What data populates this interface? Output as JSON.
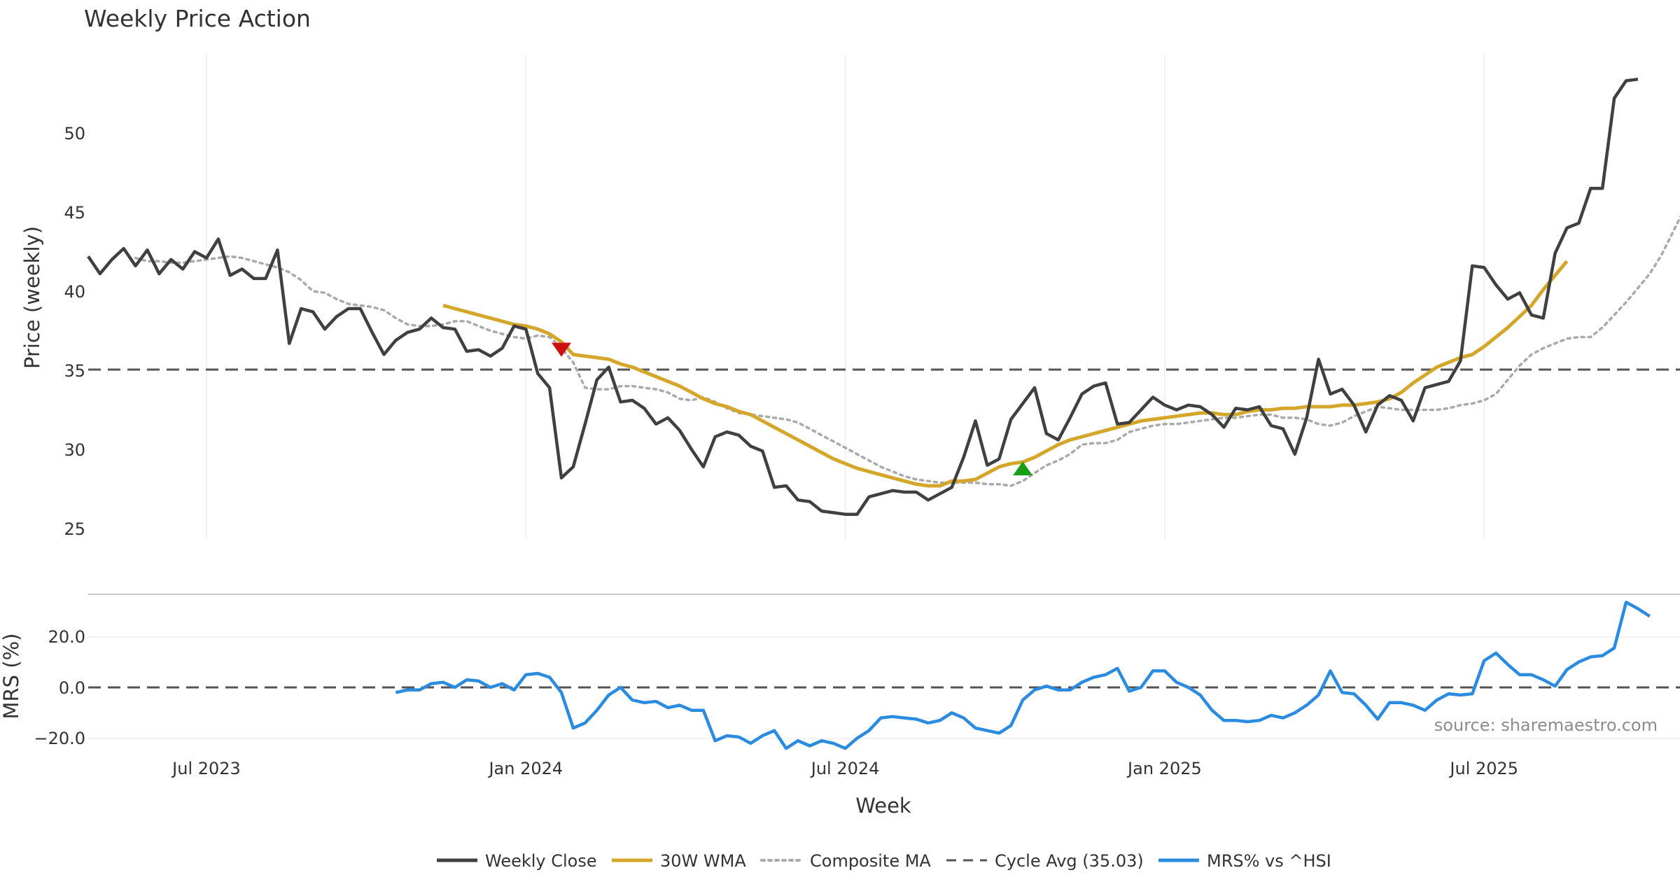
{
  "chart_data": [
    {
      "type": "line",
      "title": "Weekly Price Action",
      "ylabel": "Price (weekly)",
      "ylim": [
        23.8,
        55.5
      ],
      "yticks": [
        "25",
        "30",
        "35",
        "40",
        "45",
        "50"
      ],
      "x_start_week": 0,
      "x_end_week": 142,
      "series": [
        {
          "name": "Weekly Close",
          "color": "#404040",
          "start_week": 0,
          "values": [
            42.2,
            41.1,
            42.0,
            42.7,
            41.6,
            42.6,
            41.1,
            42.0,
            41.4,
            42.5,
            42.1,
            43.3,
            41.0,
            41.4,
            40.8,
            40.8,
            42.6,
            36.7,
            38.9,
            38.7,
            37.6,
            38.4,
            38.9,
            38.9,
            37.4,
            36.0,
            36.9,
            37.4,
            37.6,
            38.3,
            37.7,
            37.6,
            36.2,
            36.3,
            35.9,
            36.4,
            37.8,
            37.6,
            34.8,
            33.9,
            28.2,
            28.9,
            31.6,
            34.4,
            35.2,
            33.0,
            33.1,
            32.6,
            31.6,
            32.0,
            31.2,
            30.0,
            28.9,
            30.8,
            31.1,
            30.9,
            30.2,
            29.9,
            27.6,
            27.7,
            26.8,
            26.7,
            26.1,
            26.0,
            25.9,
            25.9,
            27.0,
            27.2,
            27.4,
            27.3,
            27.3,
            26.8,
            27.2,
            27.6,
            29.5,
            31.8,
            29.0,
            29.4,
            31.9,
            32.9,
            33.9,
            31.0,
            30.6,
            32.0,
            33.5,
            34.0,
            34.2,
            31.6,
            31.7,
            32.5,
            33.3,
            32.8,
            32.5,
            32.8,
            32.7,
            32.2,
            31.4,
            32.6,
            32.5,
            32.7,
            31.5,
            31.3,
            29.7,
            32.0,
            35.7,
            33.5,
            33.8,
            32.8,
            31.1,
            32.8,
            33.4,
            33.1,
            31.8,
            33.9,
            34.1,
            34.3,
            35.6,
            41.6,
            41.5,
            40.4,
            39.5,
            39.9,
            38.5,
            38.3,
            42.4,
            44.0,
            44.3,
            46.5,
            46.5,
            52.2,
            53.3,
            53.4
          ]
        },
        {
          "name": "30W WMA",
          "color": "#d4a62a",
          "start_week": 30,
          "values": [
            39.1,
            38.9,
            38.7,
            38.5,
            38.3,
            38.1,
            37.9,
            37.8,
            37.6,
            37.3,
            36.8,
            36.0,
            35.9,
            35.8,
            35.7,
            35.4,
            35.2,
            34.9,
            34.6,
            34.3,
            34.0,
            33.6,
            33.2,
            32.9,
            32.7,
            32.4,
            32.2,
            31.8,
            31.4,
            31.0,
            30.6,
            30.2,
            29.8,
            29.4,
            29.1,
            28.8,
            28.6,
            28.4,
            28.2,
            28.0,
            27.8,
            27.7,
            27.7,
            28.0,
            28.0,
            28.1,
            28.5,
            28.9,
            29.1,
            29.2,
            29.5,
            29.9,
            30.3,
            30.6,
            30.8,
            31.0,
            31.2,
            31.4,
            31.6,
            31.8,
            31.9,
            32.0,
            32.1,
            32.2,
            32.3,
            32.3,
            32.2,
            32.2,
            32.4,
            32.5,
            32.5,
            32.6,
            32.6,
            32.7,
            32.7,
            32.7,
            32.8,
            32.8,
            32.9,
            33.0,
            33.2,
            33.6,
            34.2,
            34.7,
            35.2,
            35.5,
            35.8,
            36.0,
            36.5,
            37.1,
            37.7,
            38.4,
            39.1,
            40.1,
            41.0,
            41.9
          ]
        },
        {
          "name": "Composite MA",
          "color": "#aaaaaa",
          "start_week": 4,
          "values": [
            42.1,
            41.9,
            41.9,
            41.8,
            41.8,
            41.9,
            42.0,
            42.1,
            42.2,
            42.1,
            41.9,
            41.7,
            41.5,
            41.2,
            40.7,
            40.0,
            39.9,
            39.5,
            39.2,
            39.1,
            39.0,
            38.8,
            38.3,
            37.9,
            37.8,
            37.8,
            37.9,
            38.1,
            38.1,
            37.8,
            37.5,
            37.3,
            37.1,
            37.0,
            37.2,
            37.1,
            36.4,
            35.5,
            33.9,
            33.8,
            33.8,
            34.0,
            34.0,
            33.9,
            33.8,
            33.6,
            33.2,
            33.1,
            33.3,
            33.0,
            32.6,
            32.3,
            32.2,
            32.1,
            32.0,
            31.9,
            31.7,
            31.3,
            30.9,
            30.5,
            30.1,
            29.7,
            29.3,
            28.9,
            28.6,
            28.3,
            28.1,
            28.0,
            27.9,
            27.9,
            27.9,
            27.9,
            27.8,
            27.8,
            27.7,
            28.0,
            28.5,
            29.0,
            29.3,
            29.7,
            30.3,
            30.4,
            30.4,
            30.6,
            31.1,
            31.3,
            31.5,
            31.6,
            31.6,
            31.7,
            31.8,
            31.9,
            32.0,
            32.0,
            32.1,
            32.2,
            32.2,
            32.0,
            32.0,
            31.9,
            31.6,
            31.5,
            31.7,
            32.1,
            32.4,
            32.7,
            32.6,
            32.5,
            32.5,
            32.5,
            32.5,
            32.6,
            32.8,
            32.9,
            33.1,
            33.5,
            34.4,
            35.3,
            36.0,
            36.4,
            36.7,
            37.0,
            37.1,
            37.1,
            37.7,
            38.5,
            39.3,
            40.2,
            41.1,
            42.3,
            43.8,
            45.3
          ]
        }
      ],
      "reference_lines": [
        {
          "name": "Cycle Avg (35.03)",
          "value": 35.03,
          "style": "dashed",
          "color": "#555555"
        }
      ],
      "markers": [
        {
          "type": "sell",
          "shape": "triangle-down",
          "week": 40,
          "value": 36.3,
          "color": "#cc1111"
        },
        {
          "type": "buy",
          "shape": "triangle-up",
          "week": 79,
          "value": 28.8,
          "color": "#1a9e1a"
        }
      ]
    },
    {
      "type": "line",
      "ylabel": "MRS (%)",
      "ylim": [
        -27,
        36
      ],
      "yticks": [
        "20.0",
        "0.0",
        "−20.0"
      ],
      "xlabel": "Week",
      "xticks": [
        {
          "label": "Jul 2023",
          "week": 10
        },
        {
          "label": "Jan 2024",
          "week": 37
        },
        {
          "label": "Jul 2024",
          "week": 64
        },
        {
          "label": "Jan 2025",
          "week": 91
        },
        {
          "label": "Jul 2025",
          "week": 118
        }
      ],
      "series": [
        {
          "name": "MRS% vs ^HSI",
          "color": "#2b8be0",
          "start_week": 26,
          "values": [
            -2,
            -1,
            -1,
            1.5,
            2,
            0,
            3,
            2.5,
            0,
            1.5,
            -1,
            5,
            5.5,
            4,
            -2,
            -16,
            -14,
            -9,
            -3,
            0,
            -5,
            -6,
            -5.5,
            -8,
            -7,
            -9,
            -9,
            -21,
            -19,
            -19.5,
            -22,
            -19,
            -17,
            -24,
            -21,
            -23,
            -21,
            -22,
            -24,
            -20,
            -17,
            -12,
            -11.5,
            -12,
            -12.5,
            -14,
            -13,
            -10,
            -12,
            -16,
            -17,
            -18,
            -15,
            -5,
            -1,
            0.5,
            -1,
            -1,
            2,
            4,
            5,
            7.5,
            -1.5,
            0,
            6.5,
            6.5,
            2,
            0,
            -3,
            -9,
            -13,
            -13,
            -13.5,
            -13,
            -11,
            -12,
            -10,
            -7,
            -3,
            6.5,
            -2,
            -2.5,
            -7,
            -12.5,
            -6,
            -6,
            -7,
            -9,
            -5,
            -2.5,
            -3,
            -2.5,
            10.5,
            13.5,
            9,
            5,
            5,
            3,
            0.5,
            7,
            10,
            12,
            12.5,
            15.5,
            33.5,
            31,
            28
          ]
        }
      ],
      "reference_lines": [
        {
          "value": 0,
          "style": "dashed",
          "color": "#555555"
        }
      ],
      "annotation": "source: sharemaestro.com"
    }
  ],
  "legend": [
    {
      "label": "Weekly Close",
      "style": "solid",
      "color": "#404040"
    },
    {
      "label": "30W WMA",
      "style": "solid",
      "color": "#d4a62a"
    },
    {
      "label": "Composite MA",
      "style": "dotted",
      "color": "#aaaaaa"
    },
    {
      "label": "Cycle Avg (35.03)",
      "style": "dashed",
      "color": "#555555"
    },
    {
      "label": "MRS% vs ^HSI",
      "style": "solid",
      "color": "#2b8be0"
    }
  ]
}
